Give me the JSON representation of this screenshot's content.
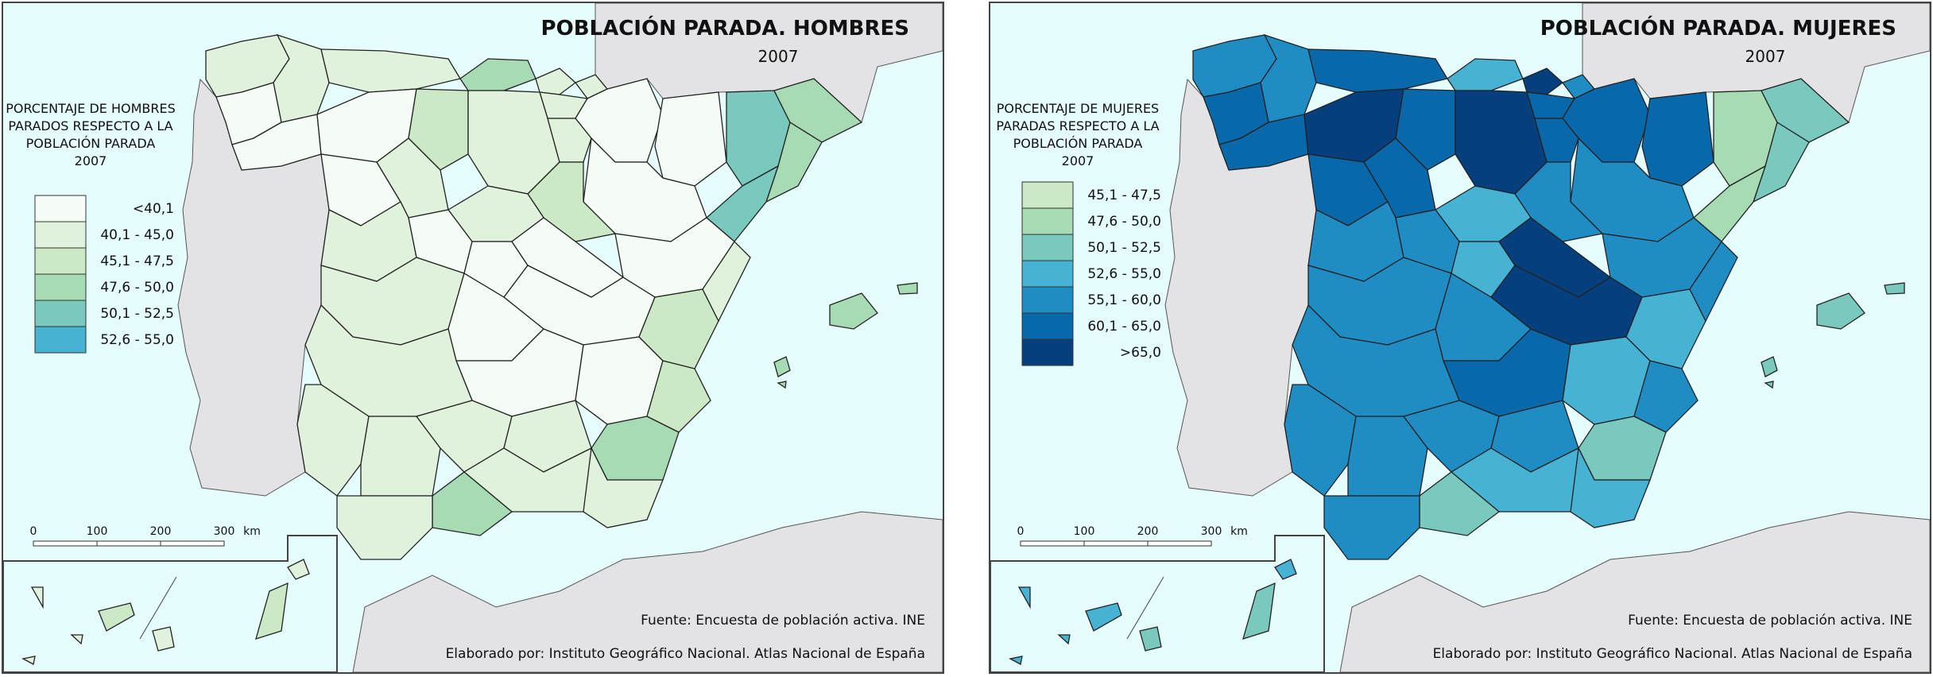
{
  "maps": [
    {
      "id": "hombres",
      "title": "POBLACIÓN PARADA. HOMBRES",
      "year": "2007",
      "legend_title": [
        "PORCENTAJE DE HOMBRES",
        "PARADOS RESPECTO A LA",
        "POBLACIÓN PARADA",
        "2007"
      ],
      "legend": [
        {
          "label": "<40,1",
          "color": "#f5fcf5"
        },
        {
          "label": "40,1 - 45,0",
          "color": "#e1f2dc"
        },
        {
          "label": "45,1 - 47,5",
          "color": "#cbe9c4"
        },
        {
          "label": "47,6 - 50,0",
          "color": "#a7dbb3"
        },
        {
          "label": "50,1 - 52,5",
          "color": "#79c9bf"
        },
        {
          "label": "52,6 - 55,0",
          "color": "#46b3d5"
        }
      ],
      "scale_labels": [
        "0",
        "100",
        "200",
        "300",
        "km"
      ],
      "source": "Fuente: Encuesta de población activa. INE",
      "credit": "Elaborado por: Instituto Geográfico Nacional. Atlas Nacional de España"
    },
    {
      "id": "mujeres",
      "title": "POBLACIÓN PARADA. MUJERES",
      "year": "2007",
      "legend_title": [
        "PORCENTAJE DE MUJERES",
        "PARADAS RESPECTO A LA",
        "POBLACIÓN PARADA",
        "2007"
      ],
      "legend": [
        {
          "label": "45,1 - 47,5",
          "color": "#cbe9c4"
        },
        {
          "label": "47,6 - 50,0",
          "color": "#a7dbb3"
        },
        {
          "label": "50,1 - 52,5",
          "color": "#79c9bf"
        },
        {
          "label": "52,6 - 55,0",
          "color": "#46b3d5"
        },
        {
          "label": "55,1 - 60,0",
          "color": "#1f8cc4"
        },
        {
          "label": "60,1 - 65,0",
          "color": "#0868aa"
        },
        {
          "label": ">65,0",
          "color": "#053f7e"
        }
      ],
      "scale_labels": [
        "0",
        "100",
        "200",
        "300",
        "km"
      ],
      "source": "Fuente: Encuesta de población activa. INE",
      "credit": "Elaborado por: Instituto Geográfico Nacional. Atlas Nacional de España"
    }
  ],
  "colors": {
    "sea": "#e6fdfd",
    "land_other": "#e3e2e4",
    "border": "#222222"
  }
}
